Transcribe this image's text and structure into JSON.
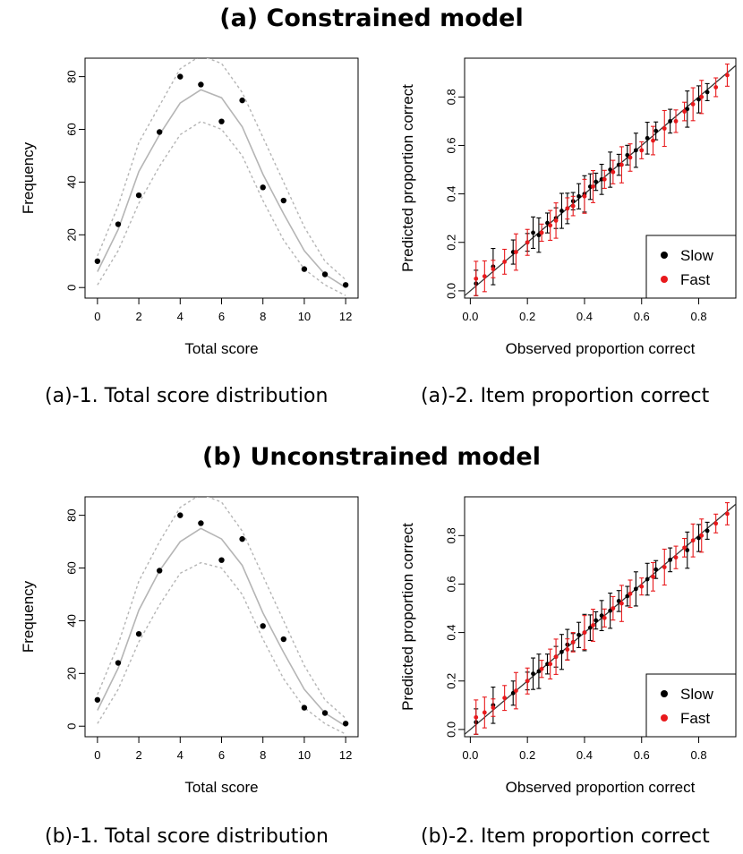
{
  "sections": [
    {
      "title": "(a) Constrained model",
      "caption_left": "(a)-1. Total score distribution",
      "caption_right": "(a)-2. Item proportion correct"
    },
    {
      "title": "(b) Unconstrained model",
      "caption_left": "(b)-1. Total score distribution",
      "caption_right": "(b)-2. Item proportion correct"
    }
  ],
  "colors": {
    "slow": "#000000",
    "fast": "#e8191c",
    "line_band": "#b5b5b5"
  },
  "chart_data": [
    {
      "type": "scatter",
      "xlabel": "Total score",
      "ylabel": "Frequency",
      "xlim": [
        0,
        12
      ],
      "ylim": [
        0,
        80
      ],
      "xticks": [
        "0",
        "2",
        "4",
        "6",
        "8",
        "10",
        "12"
      ],
      "yticks": [
        "0",
        "20",
        "40",
        "60",
        "80"
      ],
      "grid": false,
      "x": [
        0,
        1,
        2,
        3,
        4,
        5,
        6,
        7,
        8,
        9,
        10,
        11,
        12
      ],
      "observed": [
        10,
        24,
        35,
        59,
        80,
        77,
        63,
        71,
        38,
        33,
        7,
        5,
        1
      ],
      "predicted_mean": [
        6,
        22,
        44,
        58,
        70,
        75,
        72,
        61,
        43,
        28,
        14,
        5,
        0
      ],
      "predicted_upper": [
        12,
        31,
        55,
        69,
        83,
        88,
        85,
        74,
        57,
        40,
        23,
        10,
        3
      ],
      "predicted_lower": [
        1,
        14,
        32,
        46,
        58,
        63,
        60,
        50,
        33,
        18,
        7,
        1,
        -3
      ]
    },
    {
      "type": "scatter",
      "xlabel": "Observed proportion correct",
      "ylabel": "Predicted proportion correct",
      "xlim": [
        0,
        0.9
      ],
      "ylim": [
        0,
        0.9
      ],
      "xticks": [
        "0.0",
        "0.2",
        "0.4",
        "0.6",
        "0.8"
      ],
      "yticks": [
        "0.0",
        "0.2",
        "0.4",
        "0.6",
        "0.8"
      ],
      "grid": false,
      "reference_line": "y = x",
      "legend": {
        "position": "bottom-right",
        "entries": [
          "Slow",
          "Fast"
        ]
      },
      "series": [
        {
          "name": "Slow",
          "x": [
            0.02,
            0.08,
            0.15,
            0.2,
            0.22,
            0.24,
            0.27,
            0.3,
            0.32,
            0.34,
            0.36,
            0.38,
            0.4,
            0.42,
            0.44,
            0.46,
            0.49,
            0.52,
            0.55,
            0.58,
            0.62,
            0.65,
            0.7,
            0.76,
            0.8,
            0.83
          ],
          "y": [
            0.03,
            0.1,
            0.16,
            0.2,
            0.24,
            0.23,
            0.28,
            0.3,
            0.33,
            0.34,
            0.37,
            0.39,
            0.4,
            0.43,
            0.45,
            0.46,
            0.5,
            0.52,
            0.56,
            0.58,
            0.63,
            0.66,
            0.7,
            0.75,
            0.79,
            0.82
          ]
        },
        {
          "name": "Fast",
          "x": [
            0.02,
            0.05,
            0.08,
            0.12,
            0.16,
            0.2,
            0.25,
            0.28,
            0.3,
            0.34,
            0.36,
            0.4,
            0.43,
            0.47,
            0.5,
            0.53,
            0.56,
            0.6,
            0.64,
            0.68,
            0.72,
            0.75,
            0.78,
            0.81,
            0.86,
            0.9
          ],
          "y": [
            0.05,
            0.06,
            0.09,
            0.12,
            0.16,
            0.2,
            0.24,
            0.27,
            0.29,
            0.34,
            0.35,
            0.39,
            0.43,
            0.46,
            0.49,
            0.52,
            0.55,
            0.58,
            0.62,
            0.67,
            0.7,
            0.74,
            0.77,
            0.8,
            0.84,
            0.89
          ]
        }
      ]
    },
    {
      "type": "scatter",
      "xlabel": "Total score",
      "ylabel": "Frequency",
      "xlim": [
        0,
        12
      ],
      "ylim": [
        0,
        80
      ],
      "xticks": [
        "0",
        "2",
        "4",
        "6",
        "8",
        "10",
        "12"
      ],
      "yticks": [
        "0",
        "20",
        "40",
        "60",
        "80"
      ],
      "grid": false,
      "x": [
        0,
        1,
        2,
        3,
        4,
        5,
        6,
        7,
        8,
        9,
        10,
        11,
        12
      ],
      "observed": [
        10,
        24,
        35,
        59,
        80,
        77,
        63,
        71,
        38,
        33,
        7,
        5,
        1
      ],
      "predicted_mean": [
        6,
        22,
        44,
        59,
        70,
        75,
        71,
        61,
        43,
        28,
        14,
        5,
        0
      ],
      "predicted_upper": [
        12,
        31,
        55,
        70,
        83,
        88,
        85,
        74,
        57,
        40,
        23,
        10,
        3
      ],
      "predicted_lower": [
        1,
        14,
        32,
        46,
        58,
        62,
        60,
        50,
        33,
        18,
        7,
        1,
        -3
      ]
    },
    {
      "type": "scatter",
      "xlabel": "Observed proportion correct",
      "ylabel": "Predicted proportion correct",
      "xlim": [
        0,
        0.9
      ],
      "ylim": [
        0,
        0.9
      ],
      "xticks": [
        "0.0",
        "0.2",
        "0.4",
        "0.6",
        "0.8"
      ],
      "yticks": [
        "0.0",
        "0.2",
        "0.4",
        "0.6",
        "0.8"
      ],
      "grid": false,
      "reference_line": "y = x",
      "legend": {
        "position": "bottom-right",
        "entries": [
          "Slow",
          "Fast"
        ]
      },
      "series": [
        {
          "name": "Slow",
          "x": [
            0.02,
            0.08,
            0.15,
            0.2,
            0.22,
            0.24,
            0.27,
            0.3,
            0.32,
            0.34,
            0.36,
            0.38,
            0.4,
            0.42,
            0.44,
            0.46,
            0.49,
            0.52,
            0.55,
            0.58,
            0.62,
            0.65,
            0.7,
            0.76,
            0.8,
            0.83
          ],
          "y": [
            0.03,
            0.1,
            0.15,
            0.2,
            0.23,
            0.24,
            0.27,
            0.3,
            0.32,
            0.35,
            0.36,
            0.39,
            0.4,
            0.42,
            0.45,
            0.47,
            0.49,
            0.53,
            0.55,
            0.58,
            0.62,
            0.66,
            0.7,
            0.74,
            0.79,
            0.82
          ]
        },
        {
          "name": "Fast",
          "x": [
            0.02,
            0.05,
            0.08,
            0.12,
            0.16,
            0.2,
            0.25,
            0.28,
            0.3,
            0.34,
            0.36,
            0.4,
            0.43,
            0.47,
            0.5,
            0.53,
            0.56,
            0.6,
            0.64,
            0.68,
            0.72,
            0.75,
            0.78,
            0.81,
            0.86,
            0.9
          ],
          "y": [
            0.05,
            0.07,
            0.09,
            0.13,
            0.16,
            0.2,
            0.25,
            0.27,
            0.3,
            0.33,
            0.36,
            0.4,
            0.43,
            0.46,
            0.5,
            0.52,
            0.56,
            0.59,
            0.63,
            0.67,
            0.71,
            0.75,
            0.78,
            0.8,
            0.85,
            0.89
          ]
        }
      ]
    }
  ]
}
